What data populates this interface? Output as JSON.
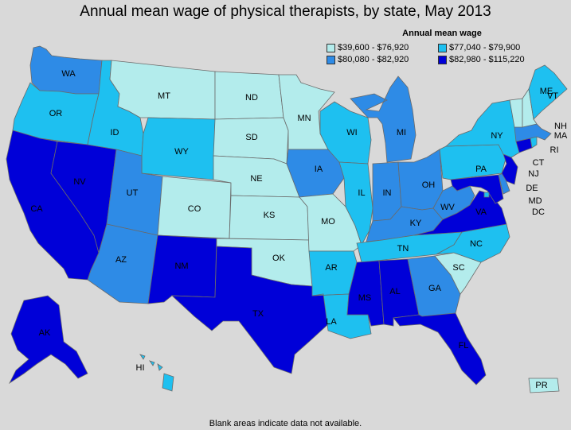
{
  "title": "Annual mean wage of physical therapists, by state, May 2013",
  "legend": {
    "title": "Annual mean wage",
    "items": [
      {
        "label": "$39,600 - $76,920",
        "color": "#b3ecec"
      },
      {
        "label": "$77,040 - $79,900",
        "color": "#1ec0f0"
      },
      {
        "label": "$80,080 - $82,920",
        "color": "#2e8be6"
      },
      {
        "label": "$82,980 - $115,220",
        "color": "#0000d8"
      }
    ]
  },
  "footer": "Blank areas indicate data not available.",
  "states": {
    "WA": 2,
    "OR": 1,
    "CA": 3,
    "NV": 3,
    "ID": 1,
    "MT": 0,
    "WY": 1,
    "UT": 2,
    "AZ": 2,
    "CO": 0,
    "NM": 3,
    "ND": 0,
    "SD": 0,
    "NE": 0,
    "KS": 0,
    "OK": 0,
    "TX": 3,
    "MN": 0,
    "IA": 2,
    "MO": 0,
    "AR": 1,
    "LA": 1,
    "WI": 1,
    "IL": 1,
    "MS": 3,
    "MI": 2,
    "IN": 2,
    "KY": 2,
    "TN": 1,
    "AL": 3,
    "OH": 2,
    "WV": 2,
    "GA": 2,
    "FL": 3,
    "SC": 0,
    "NC": 1,
    "VA": 3,
    "PA": 1,
    "NY": 1,
    "ME": 1,
    "VT": 0,
    "NH": 0,
    "MA": 2,
    "RI": 1,
    "CT": 3,
    "NJ": 3,
    "DE": 2,
    "MD": 3,
    "DC": 1,
    "AK": 3,
    "HI": 1,
    "PR": 0
  }
}
